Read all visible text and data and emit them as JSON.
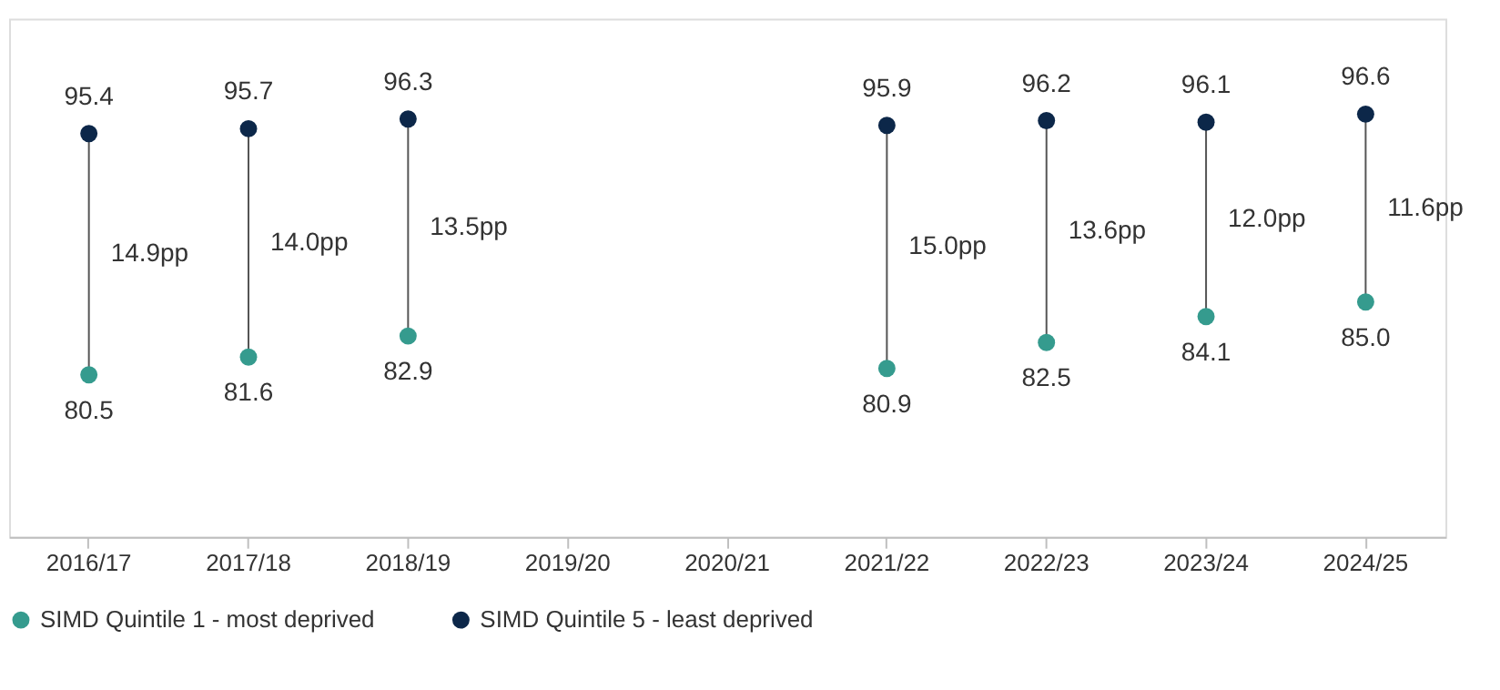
{
  "chart_data": {
    "type": "scatter",
    "categories": [
      "2016/17",
      "2017/18",
      "2018/19",
      "2019/20",
      "2020/21",
      "2021/22",
      "2022/23",
      "2023/24",
      "2024/25"
    ],
    "series": [
      {
        "name": "SIMD Quintile 1 - most deprived",
        "color": "#359b8e",
        "values": [
          80.5,
          81.6,
          82.9,
          null,
          null,
          80.9,
          82.5,
          84.1,
          85.0
        ],
        "value_labels": [
          "80.5",
          "81.6",
          "82.9",
          null,
          null,
          "80.9",
          "82.5",
          "84.1",
          "85.0"
        ]
      },
      {
        "name": "SIMD Quintile 5 - least deprived",
        "color": "#0c2749",
        "values": [
          95.4,
          95.7,
          96.3,
          null,
          null,
          95.9,
          96.2,
          96.1,
          96.6
        ],
        "value_labels": [
          "95.4",
          "95.7",
          "96.3",
          null,
          null,
          "95.9",
          "96.2",
          "96.1",
          "96.6"
        ]
      }
    ],
    "annotations": [
      "14.9pp",
      "14.0pp",
      "13.5pp",
      "15.0pp",
      "13.6pp",
      "12.0pp",
      "11.6pp"
    ],
    "ylim": [
      70.5,
      102.5
    ],
    "tick_labels": "x",
    "marker": "circle",
    "grid": false,
    "legend": "bottom"
  }
}
